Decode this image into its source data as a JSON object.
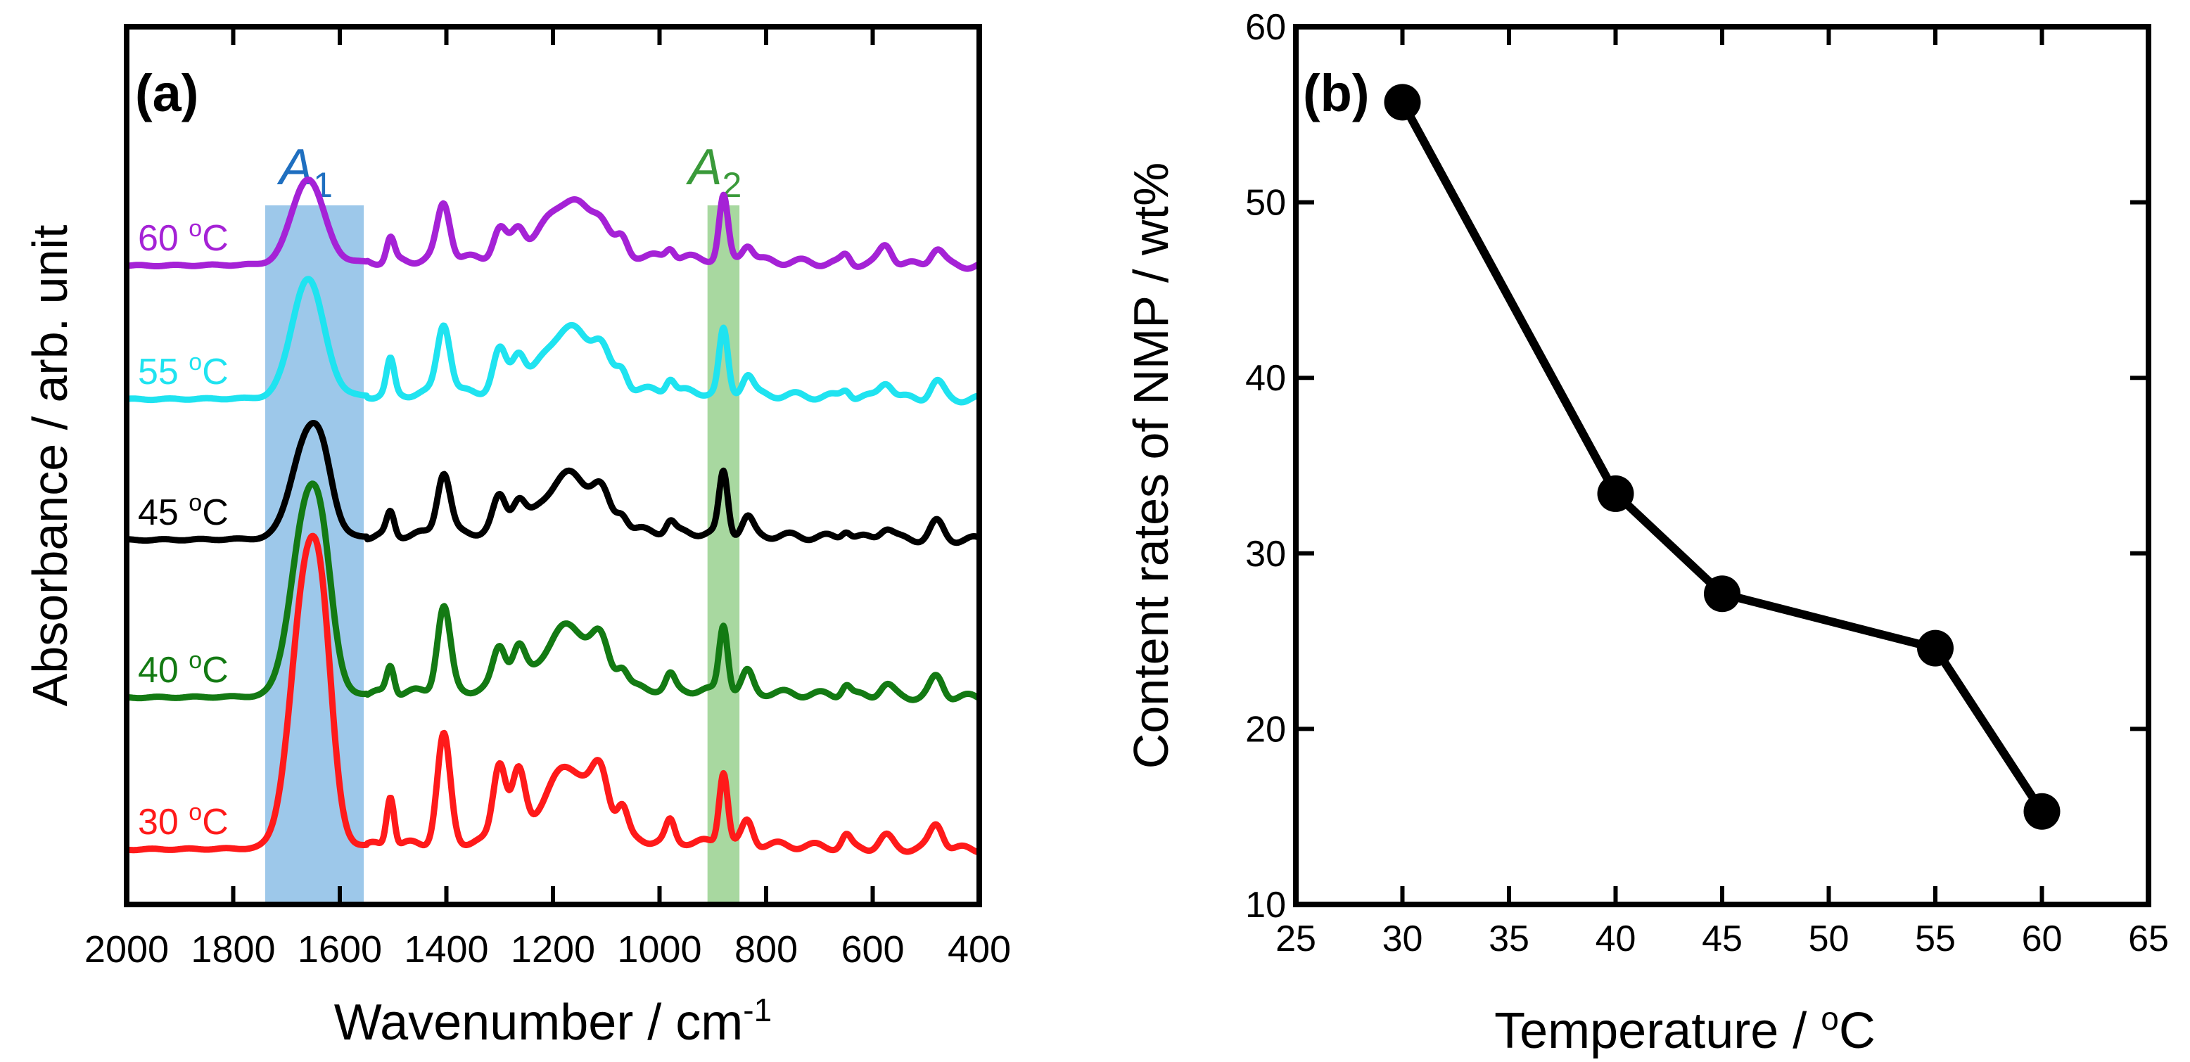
{
  "chart_data": [
    {
      "type": "line",
      "panel_label": "(a)",
      "xlabel": "Wavenumber / cm",
      "xlabel_sup": "-1",
      "ylabel": "Absorbance / arb. unit",
      "xlim": [
        2000,
        400
      ],
      "x_reversed": true,
      "xticks": [
        "2000",
        "1800",
        "1600",
        "1400",
        "1200",
        "1000",
        "800",
        "600",
        "400"
      ],
      "y_ticks_shown": false,
      "bands": [
        {
          "name": "A",
          "sub": "1",
          "range": [
            1740,
            1555
          ],
          "color": "#9dc8ea",
          "label_color": "#1f6fc0"
        },
        {
          "name": "A",
          "sub": "2",
          "range": [
            910,
            850
          ],
          "color": "#a8d8a0",
          "label_color": "#3a9a3a"
        }
      ],
      "series": [
        {
          "name": "30",
          "unit_sup": "o",
          "unit": "C",
          "color": "#ff1a1a",
          "label_order": 0
        },
        {
          "name": "40",
          "unit_sup": "o",
          "unit": "C",
          "color": "#137a13",
          "label_order": 1
        },
        {
          "name": "45",
          "unit_sup": "o",
          "unit": "C",
          "color": "#000000",
          "label_order": 2
        },
        {
          "name": "55",
          "unit_sup": "o",
          "unit": "C",
          "color": "#1fe3f0",
          "label_order": 3
        },
        {
          "name": "60",
          "unit_sup": "o",
          "unit": "C",
          "color": "#a522d6",
          "label_order": 4
        }
      ],
      "peaks": [
        {
          "x": 1660,
          "heights": [
            1.0,
            0.68,
            0.36,
            0.42,
            0.3
          ],
          "width": 30
        },
        {
          "x": 1630,
          "heights": [
            0.3,
            0.2,
            0.12,
            0.0,
            0.0
          ],
          "width": 18
        },
        {
          "x": 1505,
          "heights": [
            0.18,
            0.1,
            0.08,
            0.12,
            0.08
          ],
          "width": 7
        },
        {
          "x": 1405,
          "heights": [
            0.38,
            0.3,
            0.22,
            0.25,
            0.2
          ],
          "width": 12
        },
        {
          "x": 1300,
          "heights": [
            0.28,
            0.15,
            0.12,
            0.14,
            0.1
          ],
          "width": 12
        },
        {
          "x": 1265,
          "heights": [
            0.22,
            0.13,
            0.1,
            0.12,
            0.09
          ],
          "width": 12
        },
        {
          "x": 1170,
          "heights": [
            0.26,
            0.22,
            0.2,
            0.22,
            0.2
          ],
          "width": 45
        },
        {
          "x": 1110,
          "heights": [
            0.16,
            0.1,
            0.08,
            0.09,
            0.07
          ],
          "width": 15
        },
        {
          "x": 1070,
          "heights": [
            0.1,
            0.06,
            0.05,
            0.06,
            0.05
          ],
          "width": 10
        },
        {
          "x": 980,
          "heights": [
            0.07,
            0.05,
            0.04,
            0.05,
            0.04
          ],
          "width": 8
        },
        {
          "x": 880,
          "heights": [
            0.26,
            0.24,
            0.22,
            0.22,
            0.22
          ],
          "width": 8
        },
        {
          "x": 835,
          "heights": [
            0.08,
            0.07,
            0.06,
            0.07,
            0.06
          ],
          "width": 10
        },
        {
          "x": 650,
          "heights": [
            0.04,
            0.04,
            0.03,
            0.03,
            0.03
          ],
          "width": 8
        },
        {
          "x": 575,
          "heights": [
            0.04,
            0.04,
            0.04,
            0.06,
            0.07
          ],
          "width": 12
        },
        {
          "x": 480,
          "heights": [
            0.09,
            0.07,
            0.06,
            0.06,
            0.06
          ],
          "width": 12
        }
      ]
    },
    {
      "type": "line",
      "panel_label": "(b)",
      "xlabel": "Temperature / ",
      "xlabel_sup": "o",
      "xlabel_tail": "C",
      "ylabel": "Content rates of NMP / wt%",
      "xlim": [
        25,
        65
      ],
      "ylim": [
        10,
        60
      ],
      "xticks": [
        25,
        30,
        35,
        40,
        45,
        50,
        55,
        60,
        65
      ],
      "yticks": [
        10,
        20,
        30,
        40,
        50,
        60
      ],
      "x": [
        30,
        40,
        45,
        55,
        60
      ],
      "y": [
        55.7,
        33.4,
        27.7,
        24.6,
        15.3
      ],
      "color": "#000000"
    }
  ]
}
